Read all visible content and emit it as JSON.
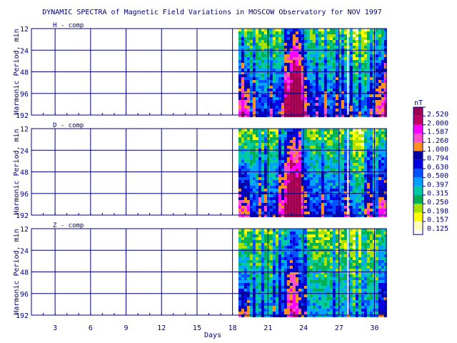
{
  "colors": {
    "axis": "#000080",
    "background": "#ffffff",
    "scale": [
      "#ffffbb",
      "#ffff00",
      "#a8e000",
      "#00b050",
      "#00c8a0",
      "#00a0ff",
      "#0050ff",
      "#0000e0",
      "#0000a0",
      "#ff9020",
      "#ff50c8",
      "#ff00ff",
      "#c00060",
      "#a00050"
    ]
  },
  "chart_data": {
    "type": "heatmap",
    "title": "DYNAMIC SPECTRA of Magnetic Field Variations in MOSCOW Observatory for NOV 1997",
    "xlabel": "Days",
    "ylabel": "Harmonic Period, min",
    "x_ticks": [
      "3",
      "6",
      "9",
      "12",
      "15",
      "18",
      "21",
      "24",
      "27",
      "30"
    ],
    "y_ticks": [
      "12",
      "24",
      "48",
      "96",
      "192"
    ],
    "xlim": [
      1,
      31
    ],
    "y_scale": "log2",
    "data_start_day": 19,
    "panels": [
      {
        "component": "H - comp",
        "peak_day": 23.2,
        "strength": 1.0
      },
      {
        "component": "D - comp",
        "peak_day": 23.0,
        "strength": 0.95
      },
      {
        "component": "Z - comp",
        "peak_day": 23.0,
        "strength": 0.6
      }
    ],
    "legend": {
      "unit": "nT",
      "labels": [
        "2.520",
        "2.000",
        "1.587",
        "1.260",
        "1.000",
        "0.794",
        "0.630",
        "0.500",
        "0.397",
        "0.315",
        "0.250",
        "0.198",
        "0.157",
        "0.125"
      ]
    }
  }
}
